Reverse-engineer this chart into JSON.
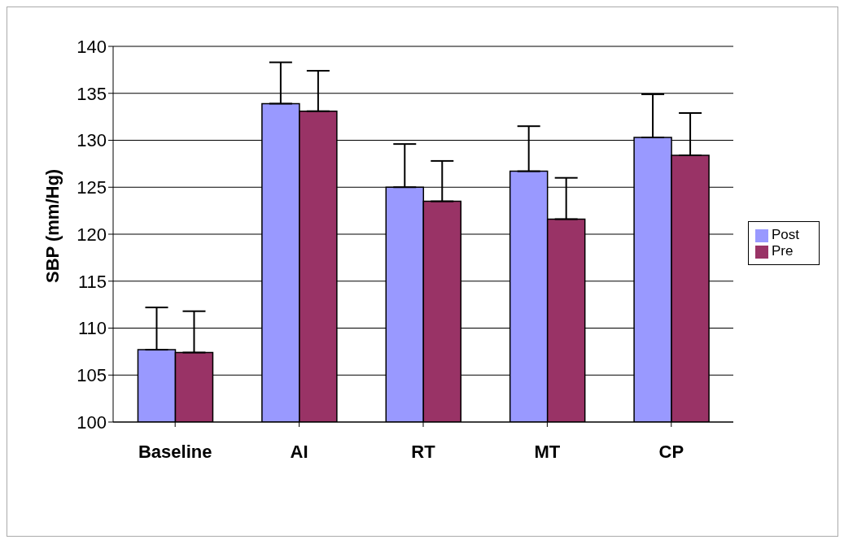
{
  "chart_data": {
    "type": "bar",
    "ylabel": "SBP (mm/Hg)",
    "categories": [
      "Baseline",
      "AI",
      "RT",
      "MT",
      "CP"
    ],
    "series": [
      {
        "name": "Post",
        "color": "#9999ff",
        "values": [
          107.7,
          133.9,
          125.0,
          126.7,
          130.3
        ],
        "errors": [
          [
            107.7,
            112.2
          ],
          [
            133.9,
            138.3
          ],
          [
            125.0,
            129.6
          ],
          [
            126.7,
            131.5
          ],
          [
            130.3,
            134.9
          ]
        ]
      },
      {
        "name": "Pre",
        "color": "#993366",
        "values": [
          107.4,
          133.1,
          123.5,
          121.6,
          128.4
        ],
        "errors": [
          [
            107.4,
            111.8
          ],
          [
            133.1,
            137.4
          ],
          [
            123.5,
            127.8
          ],
          [
            121.6,
            126.0
          ],
          [
            128.4,
            132.9
          ]
        ]
      }
    ],
    "ylim": [
      100,
      140
    ],
    "yticks": [
      100,
      105,
      110,
      115,
      120,
      125,
      130,
      135,
      140
    ],
    "grid": "y",
    "legend": "right"
  }
}
